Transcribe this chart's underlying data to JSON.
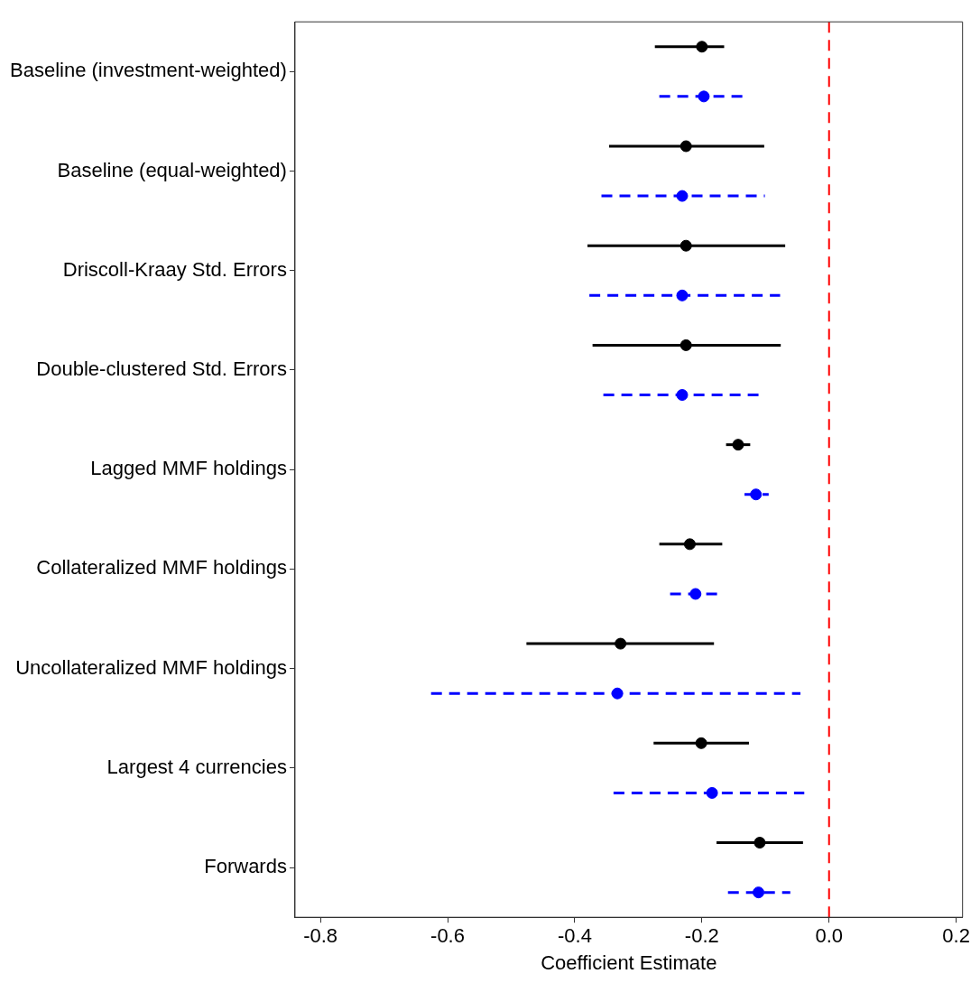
{
  "chart_data": {
    "type": "scatter",
    "orientation": "horizontal",
    "xlabel": "Coefficient Estimate",
    "categories": [
      "Baseline (investment-weighted)",
      "Baseline (equal-weighted)",
      "Driscoll-Kraay Std. Errors",
      "Double-clustered Std. Errors",
      "Lagged MMF holdings",
      "Collateralized MMF holdings",
      "Uncollateralized MMF holdings",
      "Largest 4 currencies",
      "Forwards"
    ],
    "series": [
      {
        "color": "#000000",
        "line_style": "solid",
        "values": [
          -0.2,
          -0.225,
          -0.225,
          -0.225,
          -0.143,
          -0.219,
          -0.328,
          -0.201,
          -0.109
        ],
        "errors": [
          [
            -0.274,
            -0.165
          ],
          [
            -0.346,
            -0.102
          ],
          [
            -0.38,
            -0.069
          ],
          [
            -0.372,
            -0.076
          ],
          [
            -0.162,
            -0.124
          ],
          [
            -0.267,
            -0.168
          ],
          [
            -0.476,
            -0.181
          ],
          [
            -0.276,
            -0.126
          ],
          [
            -0.177,
            -0.041
          ]
        ]
      },
      {
        "color": "#0000ff",
        "line_style": "dashed",
        "values": [
          -0.197,
          -0.231,
          -0.231,
          -0.231,
          -0.115,
          -0.21,
          -0.333,
          -0.184,
          -0.111
        ],
        "errors": [
          [
            -0.267,
            -0.136
          ],
          [
            -0.358,
            -0.101
          ],
          [
            -0.377,
            -0.077
          ],
          [
            -0.355,
            -0.111
          ],
          [
            -0.133,
            -0.095
          ],
          [
            -0.25,
            -0.175
          ],
          [
            -0.626,
            -0.045
          ],
          [
            -0.339,
            -0.039
          ],
          [
            -0.159,
            -0.061
          ]
        ]
      }
    ],
    "marker": "circle",
    "grid": false,
    "legend": false,
    "xlim": [
      -0.84,
      0.21
    ],
    "xticks": [
      -0.8,
      -0.6,
      -0.4,
      -0.2,
      {
        "value": 0,
        "label": "0.0"
      },
      0.2
    ],
    "ref_lines": [
      {
        "axis": "x",
        "value": 0,
        "color": "#ff0000",
        "line_style": "dashed"
      }
    ]
  }
}
